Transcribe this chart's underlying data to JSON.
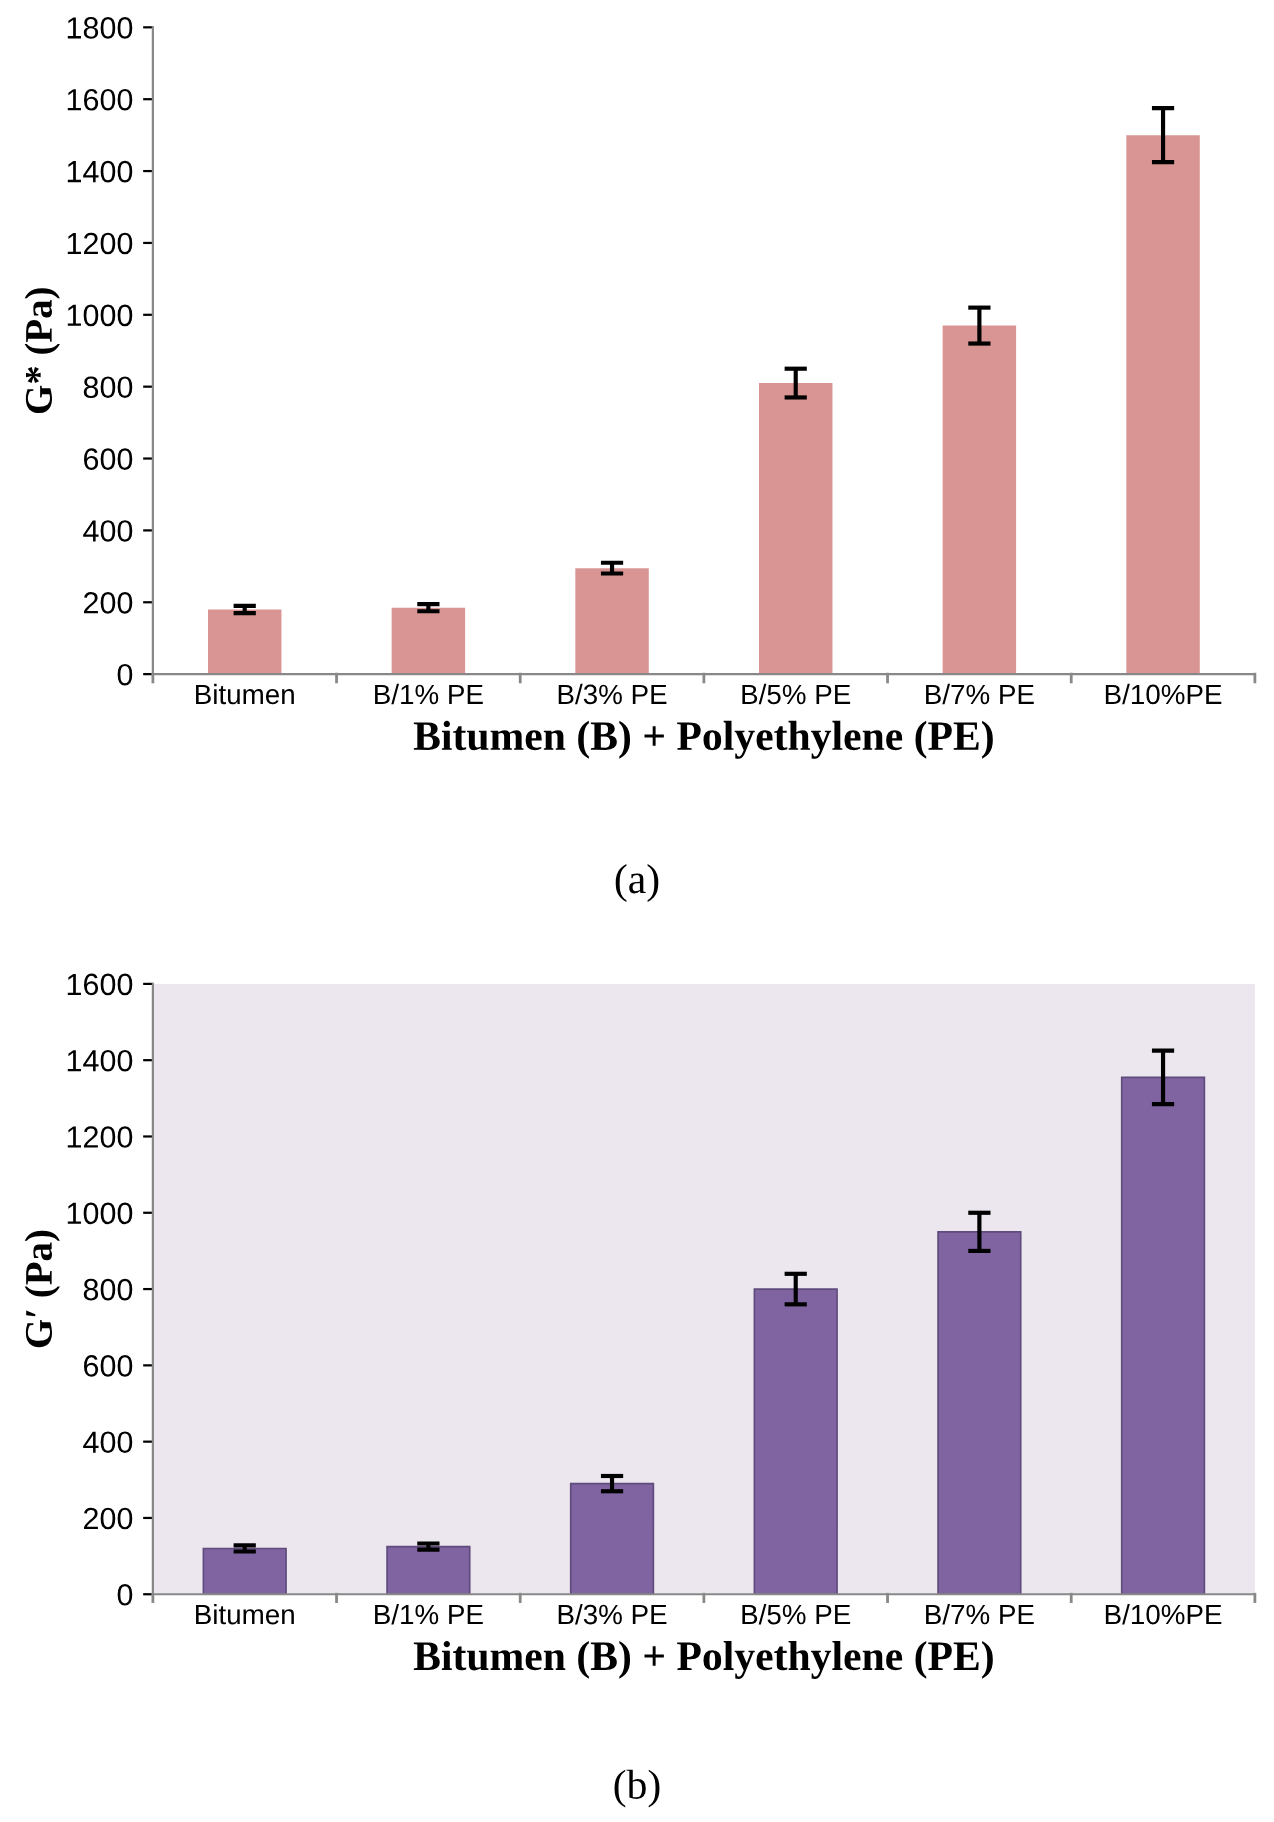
{
  "chart_data": [
    {
      "type": "bar",
      "xlabel": "Bitumen (B) + Polyethylene (PE)",
      "ylabel": "G* (Pa)",
      "annotations": [
        "(a)"
      ],
      "categories": [
        "Bitumen",
        "B/1% PE",
        "B/3% PE",
        "B/5% PE",
        "B/7% PE",
        "B/10%PE"
      ],
      "series": [
        {
          "color": "#d99594",
          "values": [
            180,
            185,
            295,
            810,
            970,
            1500
          ],
          "errors": [
            10,
            10,
            15,
            40,
            50,
            75
          ]
        }
      ],
      "ylim": [
        0,
        1800
      ],
      "yticks": [
        0,
        200,
        400,
        600,
        800,
        1000,
        1200,
        1400,
        1600,
        1800
      ],
      "grid": false,
      "legend": false
    },
    {
      "type": "bar",
      "xlabel": "Bitumen (B) + Polyethylene (PE)",
      "ylabel": "G′ (Pa)",
      "annotations": [
        "(b)"
      ],
      "categories": [
        "Bitumen",
        "B/1% PE",
        "B/3% PE",
        "B/5% PE",
        "B/7% PE",
        "B/10%PE"
      ],
      "series": [
        {
          "color": "#8064a2",
          "values": [
            120,
            125,
            290,
            800,
            950,
            1355
          ],
          "errors": [
            8,
            8,
            20,
            40,
            50,
            70
          ]
        }
      ],
      "ylim": [
        0,
        1600
      ],
      "yticks": [
        0,
        200,
        400,
        600,
        800,
        1000,
        1200,
        1400,
        1600
      ],
      "grid": false,
      "legend": false
    }
  ]
}
